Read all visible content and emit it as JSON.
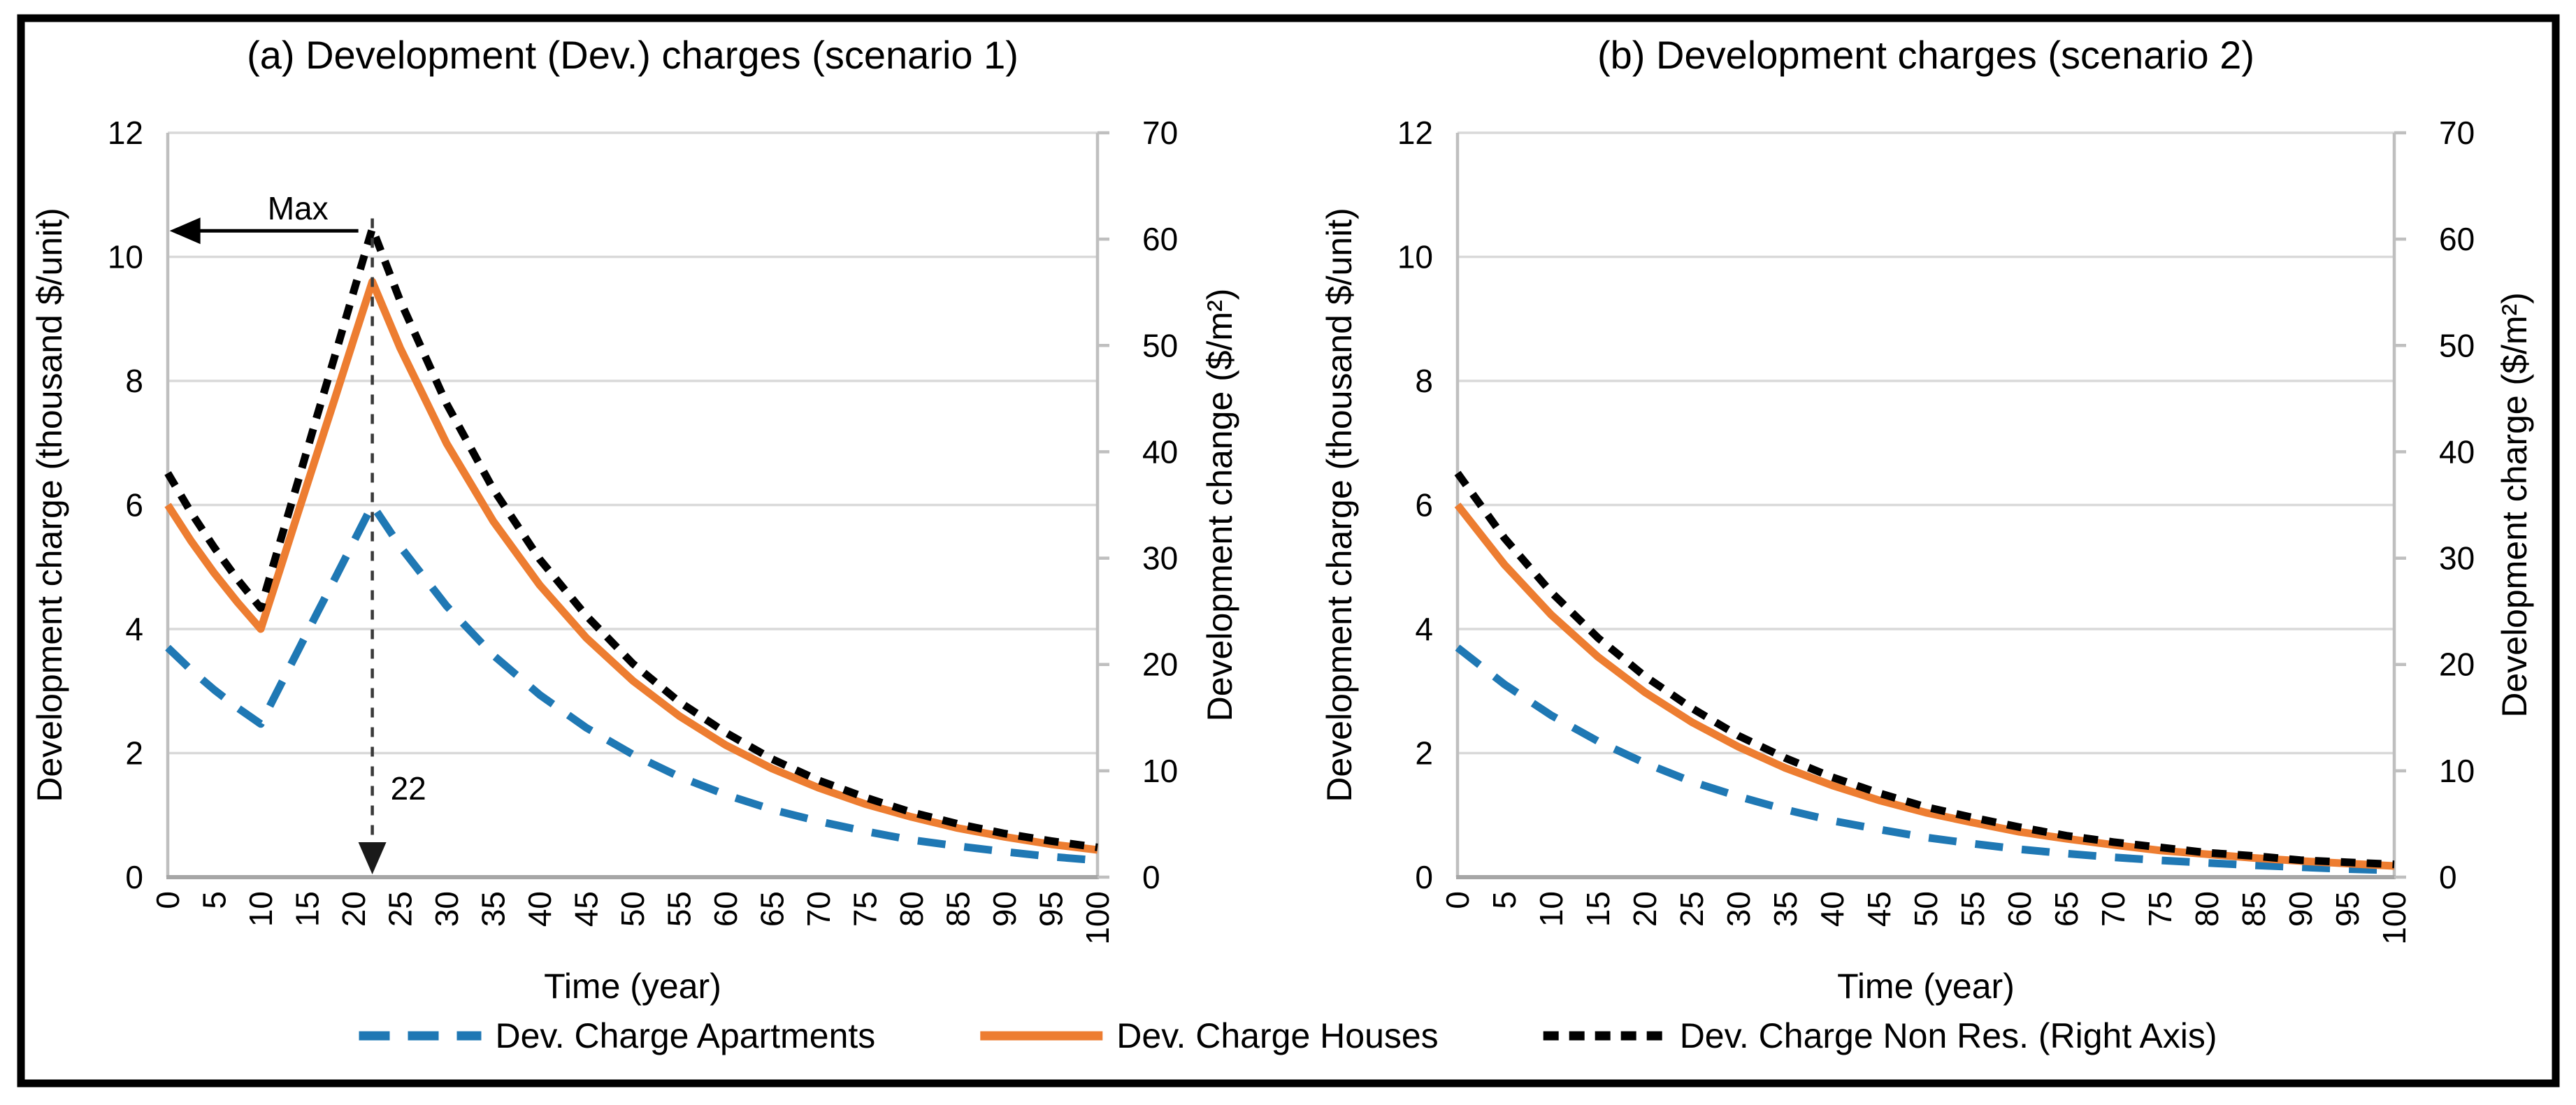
{
  "figure": {
    "border_color": "#000000",
    "background": "#ffffff",
    "colors": {
      "gridline": "#D9D9D9",
      "axis_line": "#BFBFBF",
      "bottom_axis_line": "#A6A6A6",
      "annotation": "#3A3A3A",
      "apartments_blue": "#1F78B4",
      "houses_orange": "#ED7D31",
      "nonres_black": "#000000"
    },
    "legend": [
      {
        "label": "Dev. Charge Apartments",
        "color": "#1F78B4",
        "style": "dashed-long"
      },
      {
        "label": "Dev. Charge Houses",
        "color": "#ED7D31",
        "style": "solid"
      },
      {
        "label": "Dev. Charge Non Res. (Right Axis)",
        "color": "#000000",
        "style": "dashed-dense"
      }
    ]
  },
  "chart_data": [
    {
      "type": "line",
      "title": "(a) Development (Dev.) charges (scenario 1)",
      "xlabel": "Time (year)",
      "ylabel_left": "Development charge (thousand $/unit)",
      "ylabel_right": "Development change ($/m²)",
      "xlim": [
        0,
        100
      ],
      "ylim_left": [
        0,
        12
      ],
      "ylim_right": [
        0,
        70
      ],
      "grid": "horizontal-left-axis-every-2",
      "legend_position": "bottom-shared",
      "x_tick_labels": [
        "0",
        "5",
        "10",
        "15",
        "20",
        "25",
        "30",
        "35",
        "40",
        "45",
        "50",
        "55",
        "60",
        "65",
        "70",
        "75",
        "80",
        "85",
        "90",
        "95",
        "100"
      ],
      "y_ticks_left": [
        "0",
        "2",
        "4",
        "6",
        "8",
        "10",
        "12"
      ],
      "y_ticks_right": [
        "0",
        "10",
        "20",
        "30",
        "40",
        "50",
        "60",
        "70"
      ],
      "series": [
        {
          "name": "Dev. Charge Apartments",
          "axis": "left",
          "color": "#1F78B4",
          "style": "dashed-long",
          "x": [
            0,
            2.5,
            5,
            7.5,
            10,
            12,
            14,
            16,
            18,
            20,
            22,
            25,
            30,
            35,
            40,
            45,
            50,
            55,
            60,
            65,
            70,
            75,
            80,
            85,
            90,
            95,
            100
          ],
          "y": [
            3.7,
            3.34,
            3.02,
            2.73,
            2.47,
            3.06,
            3.65,
            4.24,
            4.82,
            5.41,
            6.0,
            5.33,
            4.37,
            3.58,
            2.94,
            2.41,
            1.98,
            1.62,
            1.33,
            1.09,
            0.9,
            0.74,
            0.6,
            0.5,
            0.41,
            0.33,
            0.27
          ]
        },
        {
          "name": "Dev. Charge Houses",
          "axis": "left",
          "color": "#ED7D31",
          "style": "solid",
          "x": [
            0,
            2.5,
            5,
            7.5,
            10,
            12,
            14,
            16,
            18,
            20,
            22,
            25,
            30,
            35,
            40,
            45,
            50,
            55,
            60,
            65,
            70,
            75,
            80,
            85,
            90,
            95,
            100
          ],
          "y": [
            6.0,
            5.42,
            4.9,
            4.43,
            4.0,
            4.93,
            5.87,
            6.8,
            7.73,
            8.67,
            9.6,
            8.53,
            6.99,
            5.74,
            4.71,
            3.86,
            3.17,
            2.6,
            2.13,
            1.75,
            1.44,
            1.18,
            0.97,
            0.79,
            0.65,
            0.53,
            0.44
          ]
        },
        {
          "name": "Dev. Charge Non Res. (Right Axis)",
          "axis": "right",
          "color": "#000000",
          "style": "dashed-dense",
          "x": [
            0,
            2.5,
            5,
            7.5,
            10,
            12,
            14,
            16,
            18,
            20,
            22,
            25,
            30,
            35,
            40,
            45,
            50,
            55,
            60,
            65,
            70,
            75,
            80,
            85,
            90,
            95,
            100
          ],
          "y": [
            38.0,
            34.3,
            31.0,
            28.0,
            25.3,
            31.3,
            37.2,
            43.2,
            49.1,
            55.1,
            61.0,
            54.2,
            44.5,
            36.5,
            29.9,
            24.6,
            20.1,
            16.5,
            13.6,
            11.1,
            9.1,
            7.5,
            6.1,
            5.0,
            4.1,
            3.4,
            2.8
          ]
        }
      ],
      "annotations": {
        "max_label": "Max",
        "max_arrow_y_left": 10.42,
        "max_arrow_from_year": 20.5,
        "max_arrow_to_year": 1.1,
        "max_label_year": 14.0,
        "peak_x_value_label": "22",
        "peak_line_year": 22,
        "peak_line_top_y_left": 10.62
      }
    },
    {
      "type": "line",
      "title": "(b) Development charges (scenario 2)",
      "xlabel": "Time (year)",
      "ylabel_left": "Development charge (thousand $/unit)",
      "ylabel_right": "Development charge ($/m²)",
      "xlim": [
        0,
        100
      ],
      "ylim_left": [
        0,
        12
      ],
      "ylim_right": [
        0,
        70
      ],
      "grid": "horizontal-left-axis-every-2",
      "legend_position": "bottom-shared",
      "x_tick_labels": [
        "0",
        "5",
        "10",
        "15",
        "20",
        "25",
        "30",
        "35",
        "40",
        "45",
        "50",
        "55",
        "60",
        "65",
        "70",
        "75",
        "80",
        "85",
        "90",
        "95",
        "100"
      ],
      "y_ticks_left": [
        "0",
        "2",
        "4",
        "6",
        "8",
        "10",
        "12"
      ],
      "y_ticks_right": [
        "0",
        "10",
        "20",
        "30",
        "40",
        "50",
        "60",
        "70"
      ],
      "series": [
        {
          "name": "Dev. Charge Apartments",
          "axis": "left",
          "color": "#1F78B4",
          "style": "dashed-long",
          "x": [
            0,
            5,
            10,
            15,
            20,
            25,
            30,
            35,
            40,
            45,
            50,
            55,
            60,
            65,
            70,
            75,
            80,
            85,
            90,
            95,
            100
          ],
          "y": [
            3.7,
            3.11,
            2.61,
            2.19,
            1.84,
            1.54,
            1.3,
            1.09,
            0.91,
            0.77,
            0.64,
            0.54,
            0.45,
            0.38,
            0.32,
            0.27,
            0.23,
            0.19,
            0.16,
            0.13,
            0.11
          ]
        },
        {
          "name": "Dev. Charge Houses",
          "axis": "left",
          "color": "#ED7D31",
          "style": "solid",
          "x": [
            0,
            5,
            10,
            15,
            20,
            25,
            30,
            35,
            40,
            45,
            50,
            55,
            60,
            65,
            70,
            75,
            80,
            85,
            90,
            95,
            100
          ],
          "y": [
            6.0,
            5.04,
            4.23,
            3.55,
            2.98,
            2.5,
            2.1,
            1.76,
            1.48,
            1.24,
            1.04,
            0.88,
            0.73,
            0.62,
            0.52,
            0.43,
            0.37,
            0.31,
            0.26,
            0.22,
            0.18
          ]
        },
        {
          "name": "Dev. Charge Non Res. (Right Axis)",
          "axis": "right",
          "color": "#000000",
          "style": "dashed-dense",
          "x": [
            0,
            5,
            10,
            15,
            20,
            25,
            30,
            35,
            40,
            45,
            50,
            55,
            60,
            65,
            70,
            75,
            80,
            85,
            90,
            95,
            100
          ],
          "y": [
            38.0,
            31.9,
            26.8,
            22.5,
            18.9,
            15.9,
            13.3,
            11.2,
            9.4,
            7.9,
            6.6,
            5.6,
            4.7,
            3.9,
            3.3,
            2.8,
            2.3,
            2.0,
            1.6,
            1.4,
            1.2
          ]
        }
      ]
    }
  ]
}
